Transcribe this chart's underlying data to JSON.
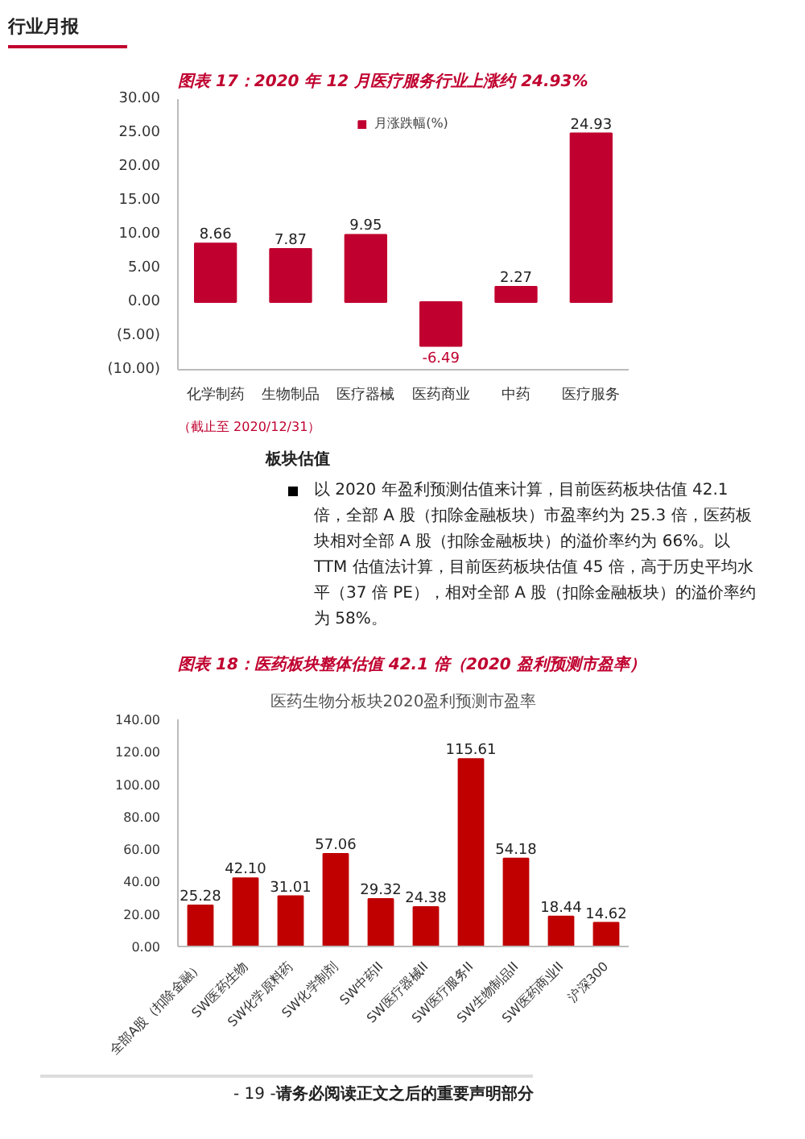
{
  "chart_data": [
    {
      "type": "other",
      "title": "行业月报"
    },
    {
      "type": "bar",
      "title": "图表 17：2020 年 12 月医疗服务行业上涨约 24.93%",
      "categories": [
        "化学制药",
        "生物制品",
        "医疗器械",
        "医药商业",
        "中药",
        "医疗服务"
      ],
      "series": [
        {
          "name": "月涨跌幅(%)",
          "color": "#c0002f",
          "values": [
            8.66,
            7.87,
            9.95,
            -6.49,
            2.27,
            24.93
          ]
        }
      ],
      "ylim": [
        -10,
        30
      ],
      "yticks": [
        {
          "value": -10,
          "label": "(10.00)"
        },
        {
          "value": -5,
          "label": "(5.00)"
        },
        {
          "value": 0,
          "label": "0.00"
        },
        {
          "value": 5,
          "label": "5.00"
        },
        {
          "value": 10,
          "label": "10.00"
        },
        {
          "value": 15,
          "label": "15.00"
        },
        {
          "value": 20,
          "label": "20.00"
        },
        {
          "value": 25,
          "label": "25.00"
        },
        {
          "value": 30,
          "label": "30.00"
        }
      ],
      "data_labels": true,
      "legend": "top",
      "annotations": [
        "（截止至 2020/12/31）"
      ]
    },
    {
      "type": "other",
      "title": "板块估值",
      "annotations": [
        "以 2020 年盈利预测估值来计算，目前医药板块估值 42.1 倍，全部 A 股（扣除金融板块）市盈率约为 25.3 倍，医药板块相对全部 A 股（扣除金融板块）的溢价率约为 66%。以 TTM 估值法计算，目前医药板块估值 45 倍，高于历史平均水平（37 倍 PE），相对全部 A 股（扣除金融板块）的溢价率约为 58%。"
      ]
    },
    {
      "type": "bar",
      "title": "图表 18：医药板块整体估值 42.1 倍（2020 盈利预测市盈率）",
      "subtitle": "医药生物分板块2020盈利预测市盈率",
      "categories": [
        "全部A股（扣除金融）",
        "SW医药生物",
        "SW化学原料药",
        "SW化学制剂",
        "SW中药II",
        "SW医疗器械II",
        "SW医疗服务II",
        "SW生物制品II",
        "SW医药商业II",
        "沪深300"
      ],
      "series": [
        {
          "color": "#c00000",
          "values": [
            25.28,
            42.1,
            31.01,
            57.06,
            29.32,
            24.38,
            115.61,
            54.18,
            18.44,
            14.62
          ]
        }
      ],
      "ylim": [
        0,
        140
      ],
      "yticks": [
        {
          "value": 0,
          "label": "0.00"
        },
        {
          "value": 20,
          "label": "20.00"
        },
        {
          "value": 40,
          "label": "40.00"
        },
        {
          "value": 60,
          "label": "60.00"
        },
        {
          "value": 80,
          "label": "80.00"
        },
        {
          "value": 100,
          "label": "100.00"
        },
        {
          "value": 120,
          "label": "120.00"
        },
        {
          "value": 140,
          "label": "140.00"
        }
      ],
      "value_labels": [
        "25.28",
        "42.10",
        "31.01",
        "57.06",
        "29.32",
        "24.38",
        "115.61",
        "54.18",
        "18.44",
        "14.62"
      ]
    },
    {
      "type": "other",
      "annotations": [
        "- 19 -",
        "请务必阅读正文之后的重要声明部分"
      ]
    }
  ]
}
